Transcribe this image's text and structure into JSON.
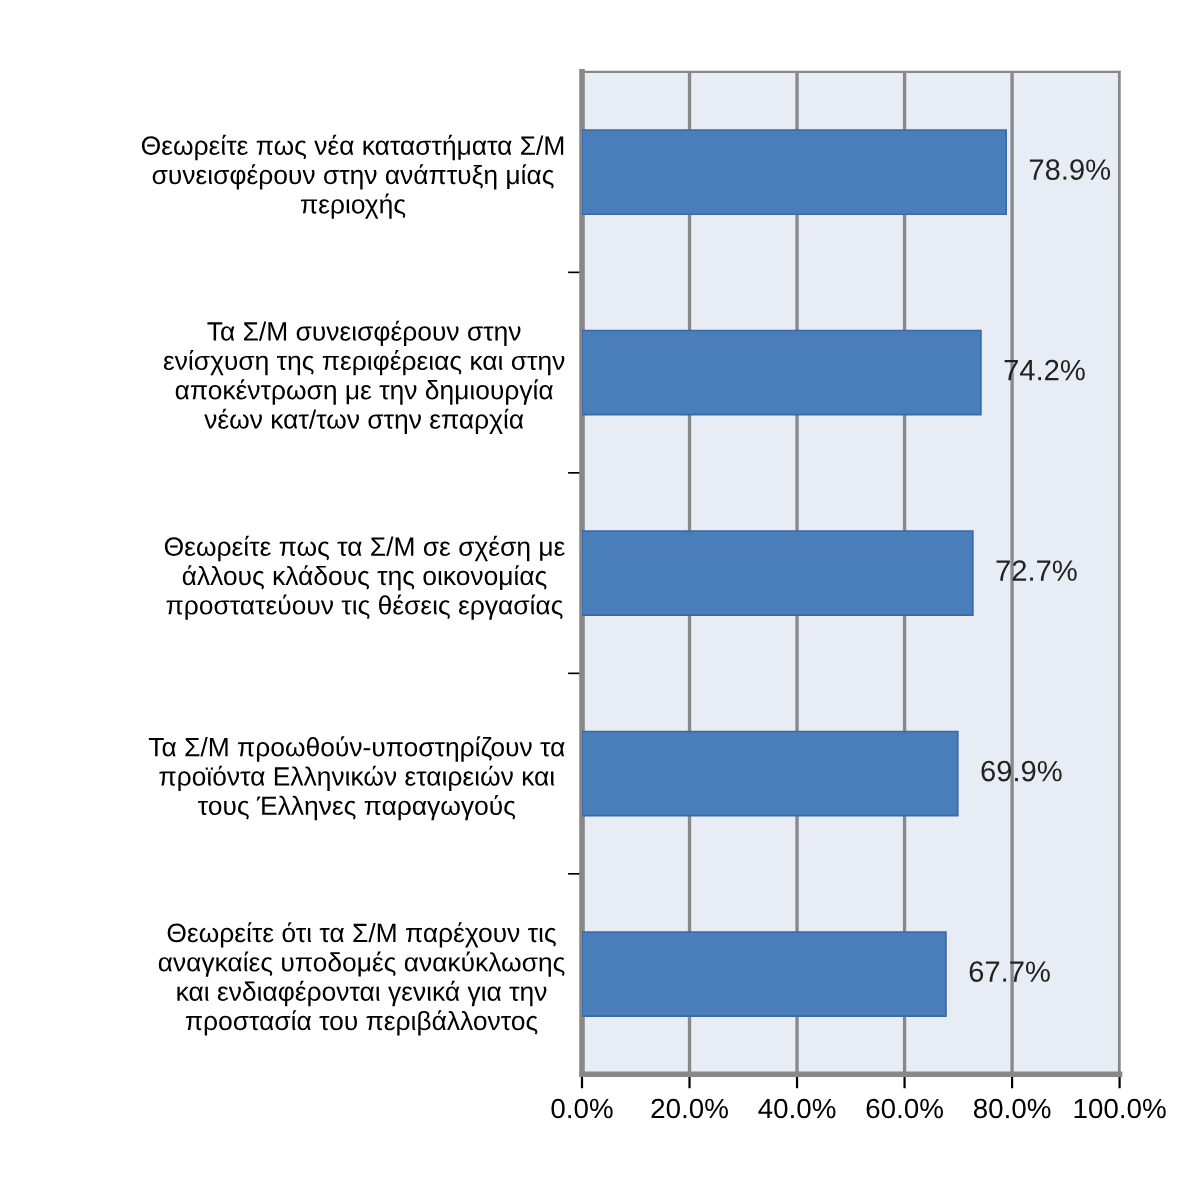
{
  "chart_data": {
    "type": "bar",
    "orientation": "horizontal",
    "categories": [
      "Θεωρείτε πως νέα καταστήματα Σ/Μ\nσυνεισφέρουν στην ανάπτυξη μίας\nπεριοχής",
      "Τα Σ/Μ συνεισφέρουν στην\nενίσχυση της περιφέρειας και στην\nαποκέντρωση με την δημιουργία\nνέων κατ/των στην επαρχία",
      "Θεωρείτε πως τα Σ/Μ σε σχέση με\nάλλους κλάδους της οικονομίας\nπροστατεύουν τις θέσεις εργασίας",
      "Τα Σ/Μ προωθούν-υποστηρίζουν τα\nπροϊόντα Ελληνικών εταιρειών και\nτους Έλληνες παραγωγούς",
      "Θεωρείτε ότι τα Σ/Μ παρέχουν τις\nαναγκαίες υποδομές ανακύκλωσης\nκαι ενδιαφέρονται γενικά για την\nπροστασία του περιβάλλοντος"
    ],
    "values": [
      78.9,
      74.2,
      72.7,
      69.9,
      67.7
    ],
    "value_labels": [
      "78.9%",
      "74.2%",
      "72.7%",
      "69.9%",
      "67.7%"
    ],
    "color": "#4a7ebb",
    "xlim": [
      0,
      100
    ],
    "xticks": [
      {
        "value": 0,
        "label": "0.0%"
      },
      {
        "value": 20,
        "label": "20.0%"
      },
      {
        "value": 40,
        "label": "40.0%"
      },
      {
        "value": 60,
        "label": "60.0%"
      },
      {
        "value": 80,
        "label": "80.0%"
      },
      {
        "value": 100,
        "label": "100.0%"
      }
    ],
    "grid": "x"
  }
}
